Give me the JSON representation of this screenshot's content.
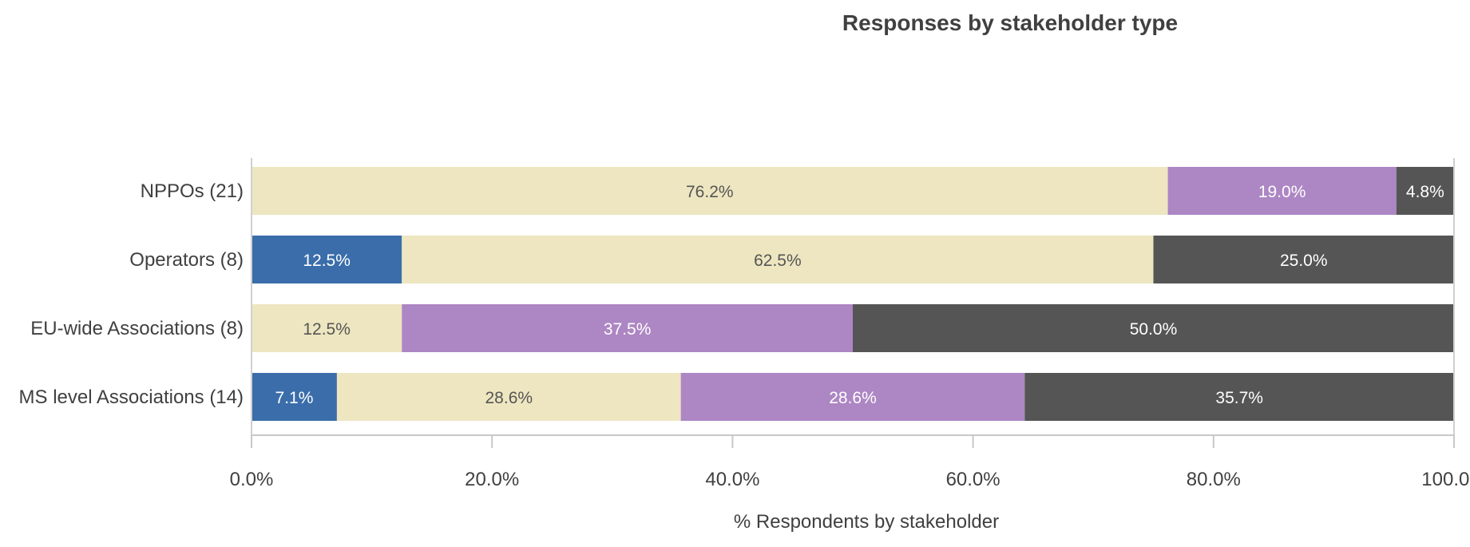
{
  "chart_data": {
    "type": "bar",
    "orientation": "horizontal",
    "stacked": true,
    "title": "Responses by stakeholder type",
    "xlabel": "% Respondents by stakeholder",
    "ylabel": "",
    "xlim": [
      0,
      100
    ],
    "x_ticks": [
      0,
      20,
      40,
      60,
      80,
      100
    ],
    "x_tick_labels": [
      "0.0%",
      "20.0%",
      "40.0%",
      "60.0%",
      "80.0%",
      "100.0%"
    ],
    "grid": false,
    "legend": "none",
    "categories": [
      "NPPOs (21)",
      "Operators (8)",
      "EU-wide Associations (8)",
      "MS level Associations (14)"
    ],
    "series": [
      {
        "color": "#3A6DAA",
        "text_color": "#ffffff",
        "values": [
          0,
          12.5,
          0,
          7.1
        ],
        "labels": [
          "",
          "12.5%",
          "",
          "7.1%"
        ]
      },
      {
        "color": "#EDE6C0",
        "text_color": "#555555",
        "values": [
          76.2,
          62.5,
          12.5,
          28.6
        ],
        "labels": [
          "76.2%",
          "62.5%",
          "12.5%",
          "28.6%"
        ]
      },
      {
        "color": "#AD86C4",
        "text_color": "#ffffff",
        "values": [
          19.0,
          0,
          37.5,
          28.6
        ],
        "labels": [
          "19.0%",
          "",
          "37.5%",
          "28.6%"
        ]
      },
      {
        "color": "#555555",
        "text_color": "#ffffff",
        "values": [
          4.8,
          25.0,
          50.0,
          35.7
        ],
        "labels": [
          "4.8%",
          "25.0%",
          "50.0%",
          "35.7%"
        ]
      }
    ]
  }
}
